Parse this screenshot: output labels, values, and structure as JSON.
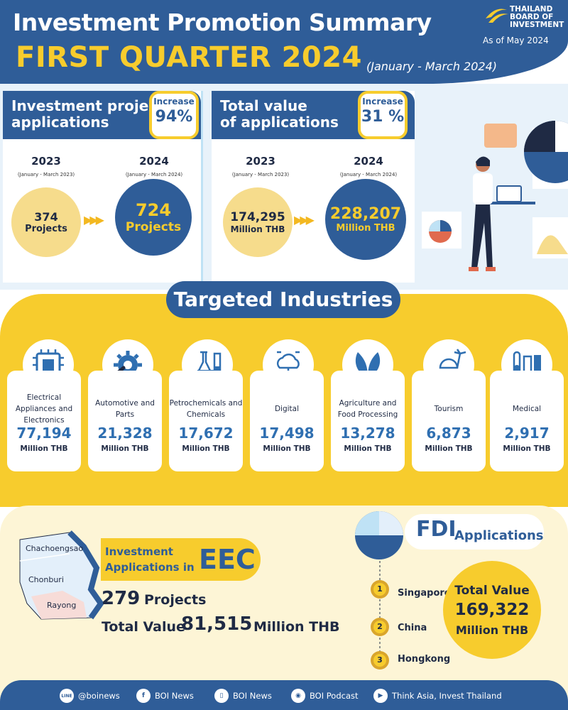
{
  "header": {
    "title": "Investment Promotion Summary",
    "quarter": "FIRST QUARTER 2024",
    "period": "(January - March 2024)",
    "logo_text_1": "THAILAND",
    "logo_text_2": "BOARD OF",
    "logo_text_3": "INVESTMENT",
    "as_of": "As of May 2024"
  },
  "projects": {
    "title_1": "Investment project",
    "title_2": "applications",
    "increase_label": "Increase",
    "increase_value": "94%",
    "y1": "2023",
    "y1_sub": "(January - March 2023)",
    "y2": "2024",
    "y2_sub": "(January - March 2024)",
    "v1": "374",
    "v1_unit": "Projects",
    "v2": "724",
    "v2_unit": "Projects"
  },
  "value": {
    "title_1": "Total value",
    "title_2": "of applications",
    "increase_label": "Increase",
    "increase_value": "31 %",
    "y1": "2023",
    "y1_sub": "(January - March 2023)",
    "y2": "2024",
    "y2_sub": "(January - March 2024)",
    "v1": "174,295",
    "v1_unit": "Million THB",
    "v2": "228,207",
    "v2_unit": "Million THB"
  },
  "industries": {
    "title": "Targeted Industries",
    "items": [
      {
        "name": "Electrical Appliances and Electronics",
        "value": "77,194",
        "unit": "Million THB",
        "icon": "circuit-chip-icon"
      },
      {
        "name": "Automotive and Parts",
        "value": "21,328",
        "unit": "Million THB",
        "icon": "gear-wrench-icon"
      },
      {
        "name": "Petrochemicals and Chemicals",
        "value": "17,672",
        "unit": "Million THB",
        "icon": "lab-flask-icon"
      },
      {
        "name": "Digital",
        "value": "17,498",
        "unit": "Million THB",
        "icon": "cloud-network-icon"
      },
      {
        "name": "Agriculture and Food Processing",
        "value": "13,278",
        "unit": "Million THB",
        "icon": "leaf-icon"
      },
      {
        "name": "Tourism",
        "value": "6,873",
        "unit": "Million THB",
        "icon": "beach-palm-icon"
      },
      {
        "name": "Medical",
        "value": "2,917",
        "unit": "Million THB",
        "icon": "test-tube-icon"
      }
    ]
  },
  "eec": {
    "label_1": "Investment",
    "label_2": "Applications in",
    "big": "EEC",
    "projects_num": "279",
    "projects_label": "Projects",
    "tv_label": "Total Value",
    "tv_num": "81,515",
    "tv_unit": "Million THB",
    "map_labels": [
      "Chachoengsao",
      "Chonburi",
      "Rayong"
    ]
  },
  "fdi": {
    "big": "FDI",
    "small": "Applications",
    "ranks": [
      {
        "rank": "1",
        "country": "Singapore"
      },
      {
        "rank": "2",
        "country": "China"
      },
      {
        "rank": "3",
        "country": "Hongkong"
      }
    ],
    "tv_1": "Total Value",
    "tv_2": "169,322",
    "tv_3": "Million THB"
  },
  "footer": {
    "items": [
      {
        "icon": "line-icon",
        "glyph": "LINE",
        "label": "@boinews"
      },
      {
        "icon": "facebook-icon",
        "glyph": "f",
        "label": "BOI News"
      },
      {
        "icon": "phone-icon",
        "glyph": "▯",
        "label": "BOI News"
      },
      {
        "icon": "podcast-icon",
        "glyph": "◉",
        "label": "BOI Podcast"
      },
      {
        "icon": "youtube-icon",
        "glyph": "▶",
        "label": "Think Asia, Invest Thailand"
      }
    ]
  },
  "colors": {
    "navy": "#2f5d98",
    "yellow": "#f7cc2d",
    "light_yellow": "#f6dc8c",
    "cream": "#fdf5d6",
    "value_blue": "#2f6fb1"
  }
}
